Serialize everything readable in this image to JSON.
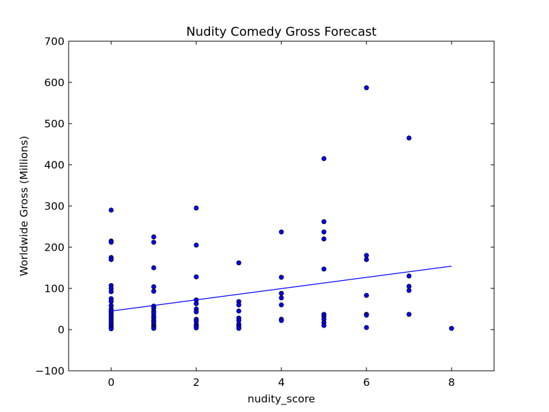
{
  "chart_data": {
    "type": "scatter",
    "title": "Nudity Comedy Gross Forecast",
    "xlabel": "nudity_score",
    "ylabel": "Worldwide Gross (Millions)",
    "xlim": [
      -1,
      9
    ],
    "ylim": [
      -100,
      700
    ],
    "xticks": [
      "0",
      "2",
      "4",
      "6",
      "8"
    ],
    "xtick_values": [
      0,
      2,
      4,
      6,
      8
    ],
    "yticks": [
      "−100",
      "0",
      "100",
      "200",
      "300",
      "400",
      "500",
      "600",
      "700"
    ],
    "ytick_values": [
      -100,
      0,
      100,
      200,
      300,
      400,
      500,
      600,
      700
    ],
    "grid": false,
    "legend": "none",
    "point_color": "#0000ff",
    "point_edge_color": "#000000",
    "line_color": "#0000ff",
    "series": [
      {
        "type": "scatter",
        "points": [
          [
            0,
            290
          ],
          [
            0,
            215
          ],
          [
            0,
            212
          ],
          [
            0,
            175
          ],
          [
            0,
            170
          ],
          [
            0,
            107
          ],
          [
            0,
            100
          ],
          [
            0,
            92
          ],
          [
            0,
            75
          ],
          [
            0,
            68
          ],
          [
            0,
            58
          ],
          [
            0,
            50
          ],
          [
            0,
            45
          ],
          [
            0,
            40
          ],
          [
            0,
            35
          ],
          [
            0,
            30
          ],
          [
            0,
            25
          ],
          [
            0,
            20
          ],
          [
            0,
            15
          ],
          [
            0,
            10
          ],
          [
            0,
            5
          ],
          [
            0,
            2
          ],
          [
            1,
            225
          ],
          [
            1,
            212
          ],
          [
            1,
            150
          ],
          [
            1,
            104
          ],
          [
            1,
            93
          ],
          [
            1,
            57
          ],
          [
            1,
            52
          ],
          [
            1,
            45
          ],
          [
            1,
            40
          ],
          [
            1,
            33
          ],
          [
            1,
            28
          ],
          [
            1,
            22
          ],
          [
            1,
            18
          ],
          [
            1,
            12
          ],
          [
            1,
            8
          ],
          [
            1,
            5
          ],
          [
            1,
            3
          ],
          [
            2,
            295
          ],
          [
            2,
            205
          ],
          [
            2,
            128
          ],
          [
            2,
            72
          ],
          [
            2,
            63
          ],
          [
            2,
            50
          ],
          [
            2,
            43
          ],
          [
            2,
            25
          ],
          [
            2,
            20
          ],
          [
            2,
            12
          ],
          [
            2,
            8
          ],
          [
            2,
            4
          ],
          [
            3,
            162
          ],
          [
            3,
            68
          ],
          [
            3,
            60
          ],
          [
            3,
            45
          ],
          [
            3,
            28
          ],
          [
            3,
            22
          ],
          [
            3,
            13
          ],
          [
            3,
            8
          ],
          [
            3,
            3
          ],
          [
            4,
            237
          ],
          [
            4,
            127
          ],
          [
            4,
            88
          ],
          [
            4,
            77
          ],
          [
            4,
            60
          ],
          [
            4,
            25
          ],
          [
            4,
            22
          ],
          [
            5,
            415
          ],
          [
            5,
            262
          ],
          [
            5,
            237
          ],
          [
            5,
            220
          ],
          [
            5,
            147
          ],
          [
            5,
            37
          ],
          [
            5,
            32
          ],
          [
            5,
            25
          ],
          [
            5,
            17
          ],
          [
            5,
            10
          ],
          [
            6,
            587
          ],
          [
            6,
            180
          ],
          [
            6,
            170
          ],
          [
            6,
            83
          ],
          [
            6,
            37
          ],
          [
            6,
            35
          ],
          [
            6,
            5
          ],
          [
            7,
            465
          ],
          [
            7,
            130
          ],
          [
            7,
            105
          ],
          [
            7,
            95
          ],
          [
            7,
            37
          ],
          [
            8,
            3
          ]
        ]
      },
      {
        "type": "line",
        "points": [
          [
            0,
            45
          ],
          [
            8,
            154
          ]
        ]
      }
    ]
  }
}
